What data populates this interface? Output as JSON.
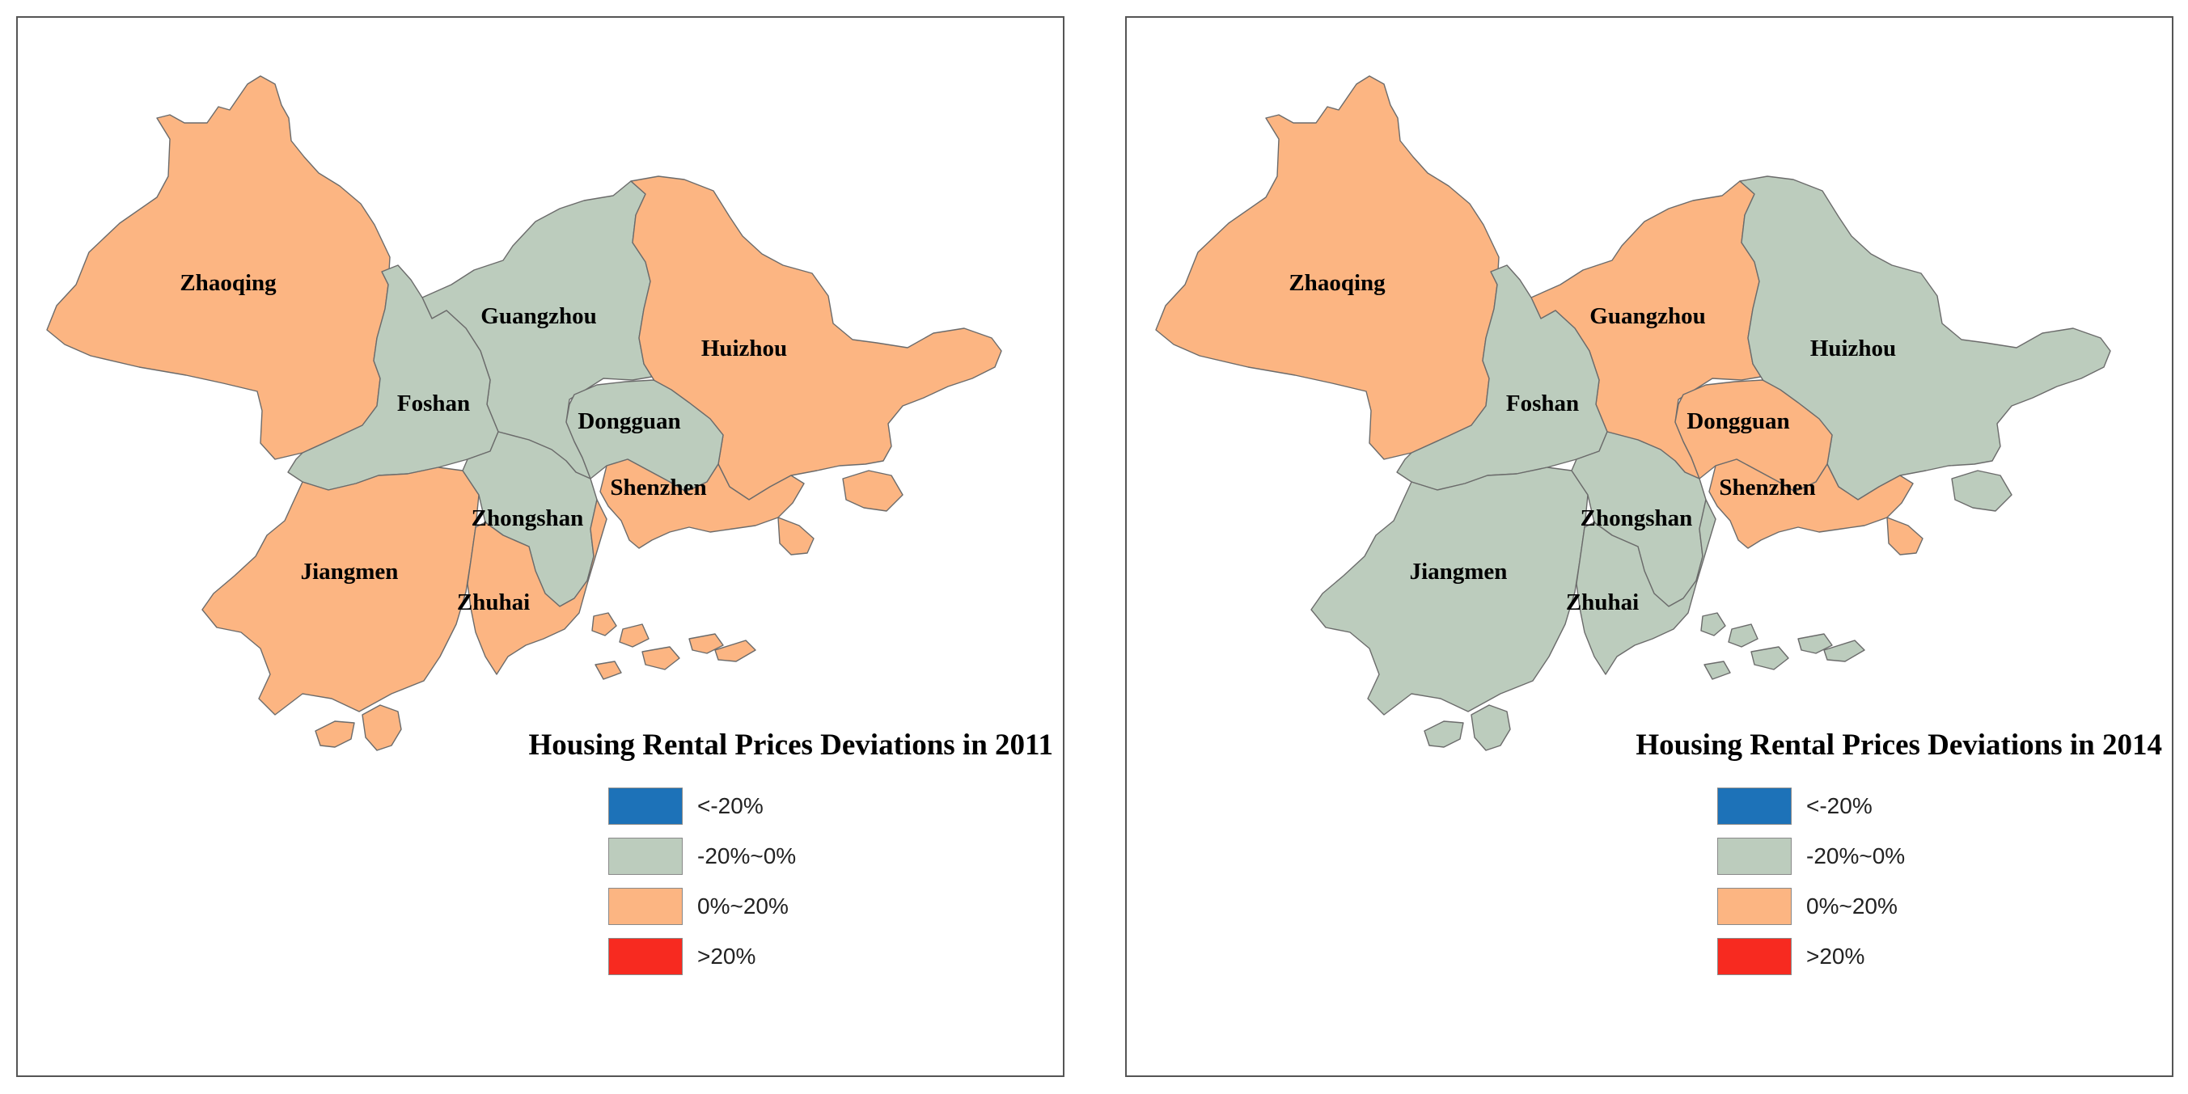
{
  "legend_colors": {
    "lt_neg20": "#1d72b8",
    "neg20_0": "#bcccbd",
    "pos0_20": "#fcb582",
    "gt20": "#f72a20"
  },
  "maps": [
    {
      "title": "Housing Rental Prices Deviations in 2011",
      "legend": [
        "<-20%",
        "-20%~0%",
        "0%~20%",
        ">20%"
      ],
      "cities": {
        "zhaoqing": {
          "name": "Zhaoqing",
          "class": "0%~20%"
        },
        "guangzhou": {
          "name": "Guangzhou",
          "class": "-20%~0%"
        },
        "huizhou": {
          "name": "Huizhou",
          "class": "0%~20%"
        },
        "foshan": {
          "name": "Foshan",
          "class": "-20%~0%"
        },
        "dongguan": {
          "name": "Dongguan",
          "class": "-20%~0%"
        },
        "shenzhen": {
          "name": "Shenzhen",
          "class": "0%~20%"
        },
        "zhongshan": {
          "name": "Zhongshan",
          "class": "-20%~0%"
        },
        "jiangmen": {
          "name": "Jiangmen",
          "class": "0%~20%"
        },
        "zhuhai": {
          "name": "Zhuhai",
          "class": "0%~20%"
        }
      }
    },
    {
      "title": "Housing Rental Prices Deviations in 2014",
      "legend": [
        "<-20%",
        "-20%~0%",
        "0%~20%",
        ">20%"
      ],
      "cities": {
        "zhaoqing": {
          "name": "Zhaoqing",
          "class": "0%~20%"
        },
        "guangzhou": {
          "name": "Guangzhou",
          "class": "0%~20%"
        },
        "huizhou": {
          "name": "Huizhou",
          "class": "-20%~0%"
        },
        "foshan": {
          "name": "Foshan",
          "class": "-20%~0%"
        },
        "dongguan": {
          "name": "Dongguan",
          "class": "0%~20%"
        },
        "shenzhen": {
          "name": "Shenzhen",
          "class": "0%~20%"
        },
        "zhongshan": {
          "name": "Zhongshan",
          "class": "-20%~0%"
        },
        "jiangmen": {
          "name": "Jiangmen",
          "class": "-20%~0%"
        },
        "zhuhai": {
          "name": "Zhuhai",
          "class": "-20%~0%"
        }
      }
    }
  ]
}
